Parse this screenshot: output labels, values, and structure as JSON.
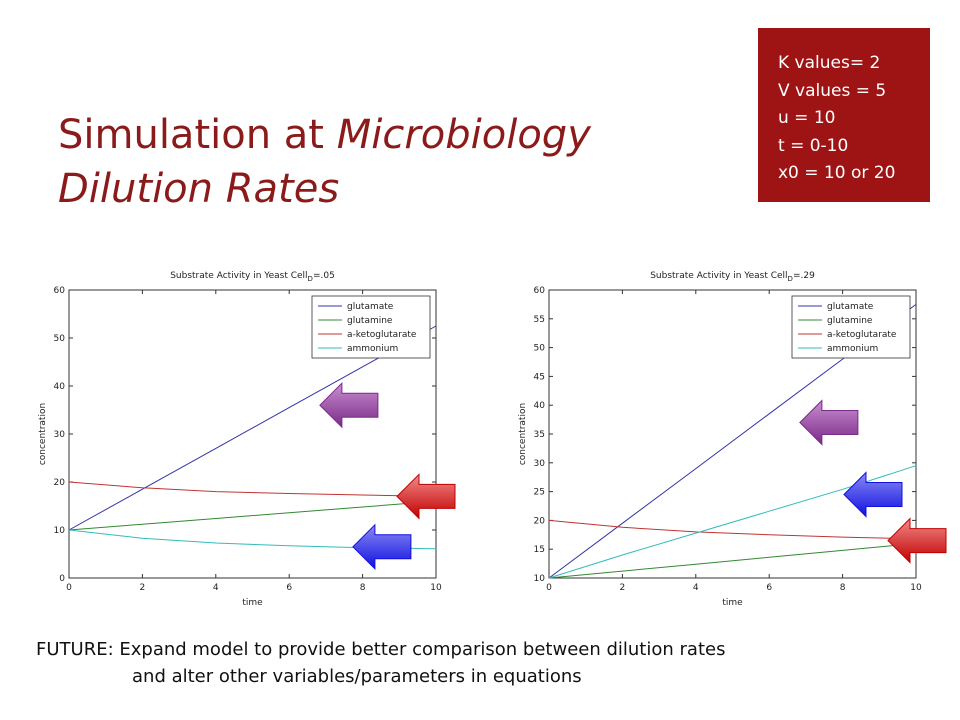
{
  "slide": {
    "title_line1_normal": "Simulation at ",
    "title_line1_italic": "Microbiology",
    "title_line2_italic": "Dilution Rates",
    "params": [
      "K values= 2",
      "V values = 5",
      "u = 10",
      "t = 0-10",
      "x0 = 10 or 20"
    ],
    "footer_line1": "FUTURE: Expand model to provide better comparison between dilution rates",
    "footer_line2": "and alter other variables/parameters in equations",
    "colors": {
      "accent": "#9e1414",
      "title": "#8b1a1a"
    }
  },
  "chart_data": [
    {
      "type": "line",
      "title_prefix": "Substrate Activity in Yeast Cell",
      "title_sub": "D",
      "title_suffix": "=.05",
      "xlabel": "time",
      "ylabel": "concentration",
      "xlim": [
        0,
        10
      ],
      "ylim": [
        0,
        60
      ],
      "xticks": [
        0,
        2,
        4,
        6,
        8,
        10
      ],
      "yticks": [
        0,
        10,
        20,
        30,
        40,
        50,
        60
      ],
      "grid": false,
      "legend": "top-right",
      "x": [
        0,
        2,
        4,
        6,
        8,
        10
      ],
      "series": [
        {
          "name": "glutamate",
          "color": "#3333aa",
          "values": [
            10,
            18.5,
            27,
            35.5,
            44,
            52.5
          ]
        },
        {
          "name": "glutamine",
          "color": "#338833",
          "values": [
            10,
            11.2,
            12.4,
            13.6,
            14.8,
            16
          ]
        },
        {
          "name": "a-ketoglutarate",
          "color": "#c03333",
          "values": [
            20,
            18.8,
            18,
            17.6,
            17.3,
            17
          ]
        },
        {
          "name": "ammonium",
          "color": "#33bbbb",
          "values": [
            10,
            8.3,
            7.3,
            6.7,
            6.3,
            6.1
          ]
        }
      ],
      "arrows": [
        {
          "color": "purple",
          "x": 7.6,
          "y": 36
        },
        {
          "color": "red",
          "x": 9.7,
          "y": 17
        },
        {
          "color": "blue",
          "x": 8.5,
          "y": 6.5
        }
      ]
    },
    {
      "type": "line",
      "title_prefix": "Substrate Activity in Yeast Cell",
      "title_sub": "D",
      "title_suffix": "=.29",
      "xlabel": "time",
      "ylabel": "concentration",
      "xlim": [
        0,
        10
      ],
      "ylim": [
        10,
        60
      ],
      "xticks": [
        0,
        2,
        4,
        6,
        8,
        10
      ],
      "yticks": [
        10,
        15,
        20,
        25,
        30,
        35,
        40,
        45,
        50,
        55,
        60
      ],
      "grid": false,
      "legend": "top-right",
      "x": [
        0,
        2,
        4,
        6,
        8,
        10
      ],
      "series": [
        {
          "name": "glutamate",
          "color": "#3333aa",
          "values": [
            10,
            19.5,
            29,
            38.5,
            48,
            57.5
          ]
        },
        {
          "name": "glutamine",
          "color": "#338833",
          "values": [
            10,
            11.2,
            12.4,
            13.6,
            14.8,
            16
          ]
        },
        {
          "name": "a-ketoglutarate",
          "color": "#c03333",
          "values": [
            20,
            18.8,
            18,
            17.5,
            17.1,
            16.8
          ]
        },
        {
          "name": "ammonium",
          "color": "#33bbbb",
          "values": [
            10,
            14,
            17.8,
            21.6,
            25.4,
            29.5
          ]
        }
      ],
      "arrows": [
        {
          "color": "purple",
          "x": 7.6,
          "y": 37
        },
        {
          "color": "blue",
          "x": 8.8,
          "y": 24.5
        },
        {
          "color": "red",
          "x": 10,
          "y": 16.5
        }
      ]
    }
  ]
}
